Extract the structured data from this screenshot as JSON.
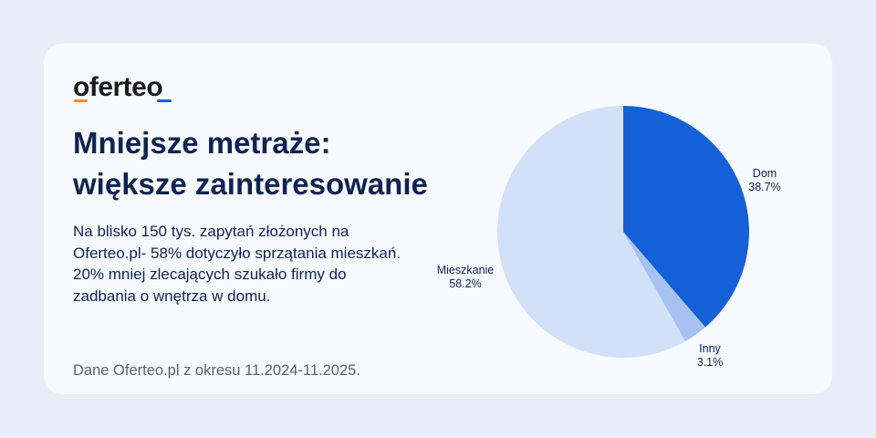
{
  "brand": {
    "logo_text": "oferteo",
    "accent_orange": "#f08c2c",
    "accent_blue": "#1560d6"
  },
  "header": {
    "title_line1": "Mniejsze metraże:",
    "title_line2": "większe zainteresowanie"
  },
  "description": "Na blisko 150 tys. zapytań złożonych na Oferteo.pl- 58% dotyczyło sprzątania mieszkań. 20% mniej zlecających szukało firmy do zadbania o wnętrza w domu.",
  "footer": "Dane Oferteo.pl z okresu 11.2024-11.2025.",
  "chart_data": {
    "type": "pie",
    "start": "12 o'clock, clockwise",
    "slices": [
      {
        "label": "Dom",
        "value": 38.7,
        "value_label": "38.7%",
        "color": "#1560d6"
      },
      {
        "label": "Inny",
        "value": 3.1,
        "value_label": "3.1%",
        "color": "#a6c2f0"
      },
      {
        "label": "Mieszkanie",
        "value": 58.2,
        "value_label": "58.2%",
        "color": "#d2e1f7"
      }
    ]
  }
}
